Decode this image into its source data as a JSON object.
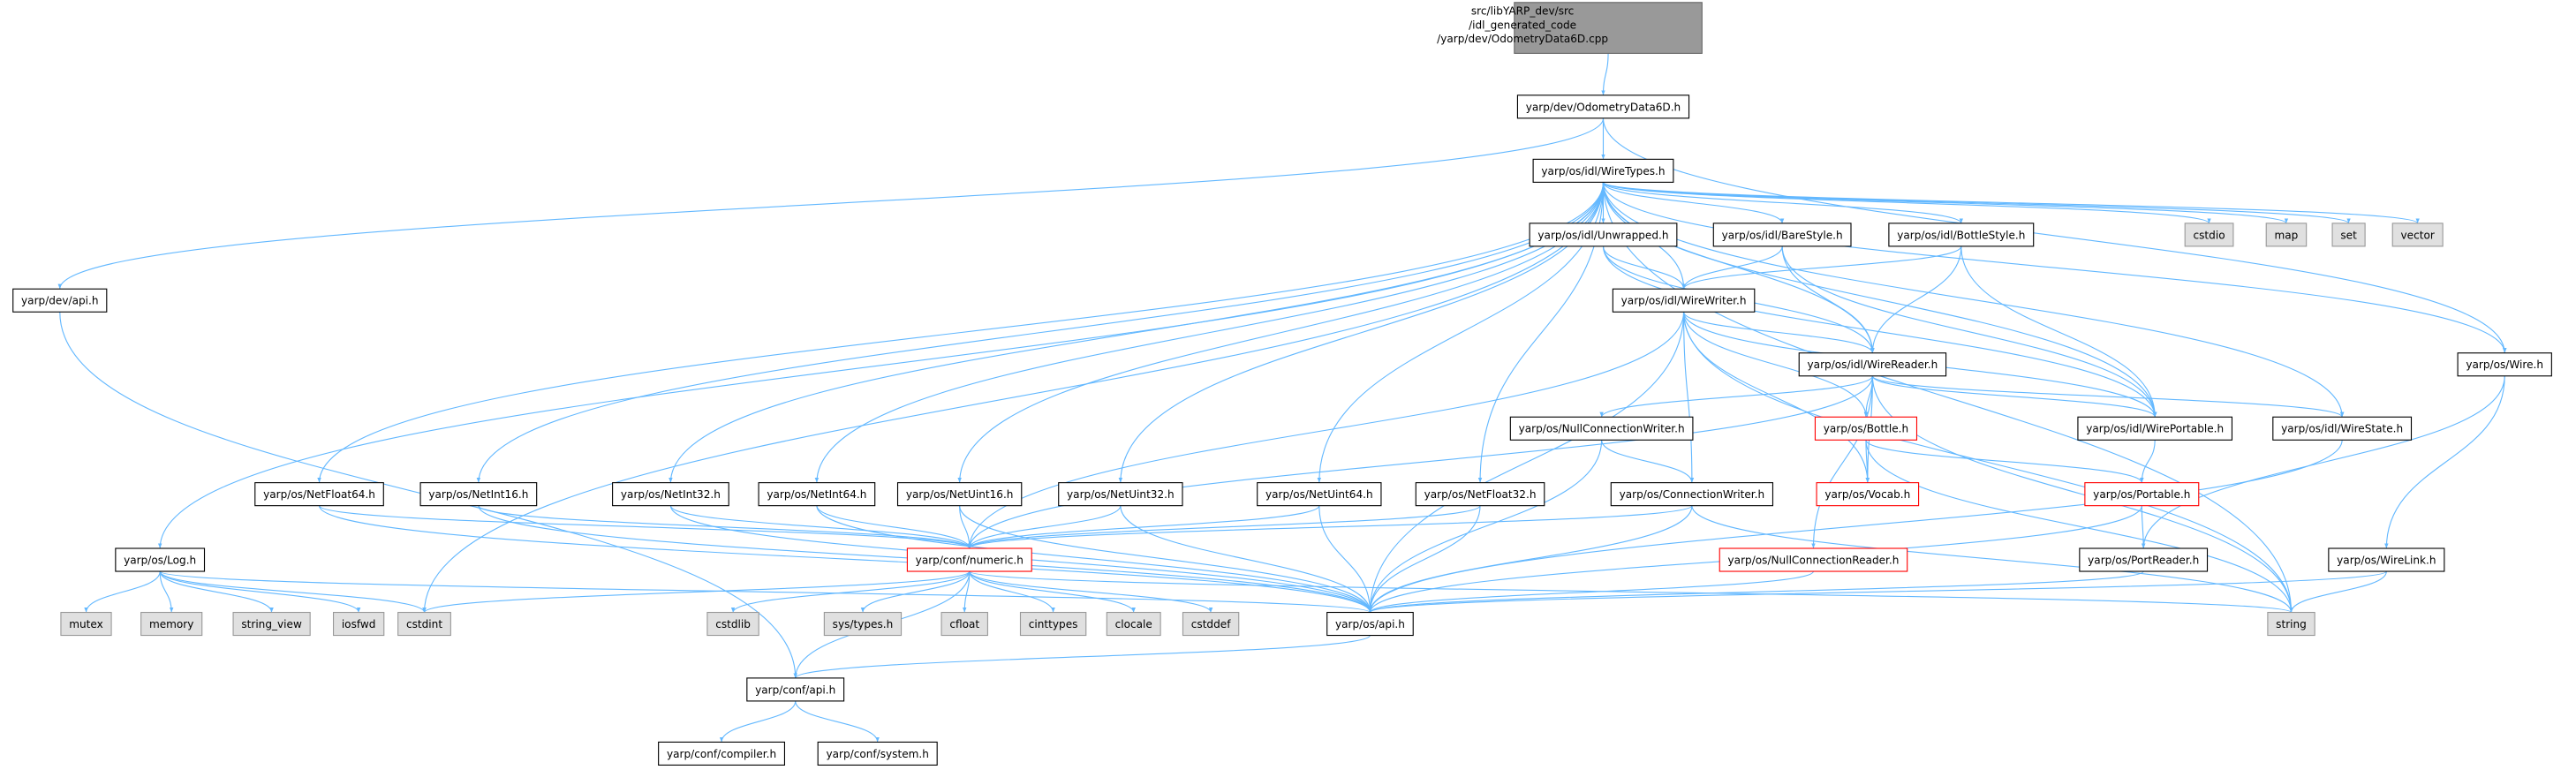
{
  "nodes": [
    {
      "lines": [
        "src/libYARP_dev/src",
        "/idl_generated_code",
        "/yarp/dev/OdometryData6D.cpp"
      ]
    },
    {
      "label": "yarp/dev/OdometryData6D.h"
    },
    {
      "label": "yarp/os/idl/WireTypes.h"
    },
    {
      "label": "yarp/dev/api.h"
    },
    {
      "label": "yarp/os/Log.h"
    },
    {
      "label": "yarp/os/NetFloat64.h"
    },
    {
      "label": "yarp/os/NetInt16.h"
    },
    {
      "label": "yarp/os/NetInt32.h"
    },
    {
      "label": "yarp/os/NetInt64.h"
    },
    {
      "label": "yarp/os/NetUint16.h"
    },
    {
      "label": "yarp/os/NetUint32.h"
    },
    {
      "label": "yarp/os/NetUint64.h"
    },
    {
      "label": "yarp/os/NetFloat32.h"
    },
    {
      "label": "yarp/os/idl/Unwrapped.h"
    },
    {
      "label": "yarp/os/idl/BareStyle.h"
    },
    {
      "label": "yarp/os/idl/BottleStyle.h"
    },
    {
      "label": "cstdio"
    },
    {
      "label": "map"
    },
    {
      "label": "set"
    },
    {
      "label": "vector"
    },
    {
      "label": "yarp/os/idl/WireWriter.h"
    },
    {
      "label": "yarp/os/Wire.h"
    },
    {
      "label": "yarp/os/idl/WireReader.h"
    },
    {
      "label": "yarp/os/NullConnectionWriter.h"
    },
    {
      "label": "yarp/os/Bottle.h"
    },
    {
      "label": "yarp/os/idl/WirePortable.h"
    },
    {
      "label": "yarp/os/idl/WireState.h"
    },
    {
      "label": "yarp/os/ConnectionWriter.h"
    },
    {
      "label": "yarp/os/Vocab.h"
    },
    {
      "label": "yarp/os/Portable.h"
    },
    {
      "label": "yarp/conf/numeric.h"
    },
    {
      "label": "yarp/os/NullConnectionReader.h"
    },
    {
      "label": "yarp/os/PortReader.h"
    },
    {
      "label": "yarp/os/WireLink.h"
    },
    {
      "label": "mutex"
    },
    {
      "label": "memory"
    },
    {
      "label": "string_view"
    },
    {
      "label": "iosfwd"
    },
    {
      "label": "cstdint"
    },
    {
      "label": "cstdlib"
    },
    {
      "label": "sys/types.h"
    },
    {
      "label": "cfloat"
    },
    {
      "label": "cinttypes"
    },
    {
      "label": "clocale"
    },
    {
      "label": "cstddef"
    },
    {
      "label": "yarp/os/api.h"
    },
    {
      "label": "string"
    },
    {
      "label": "yarp/conf/api.h"
    },
    {
      "label": "yarp/conf/compiler.h"
    },
    {
      "label": "yarp/conf/system.h"
    }
  ]
}
